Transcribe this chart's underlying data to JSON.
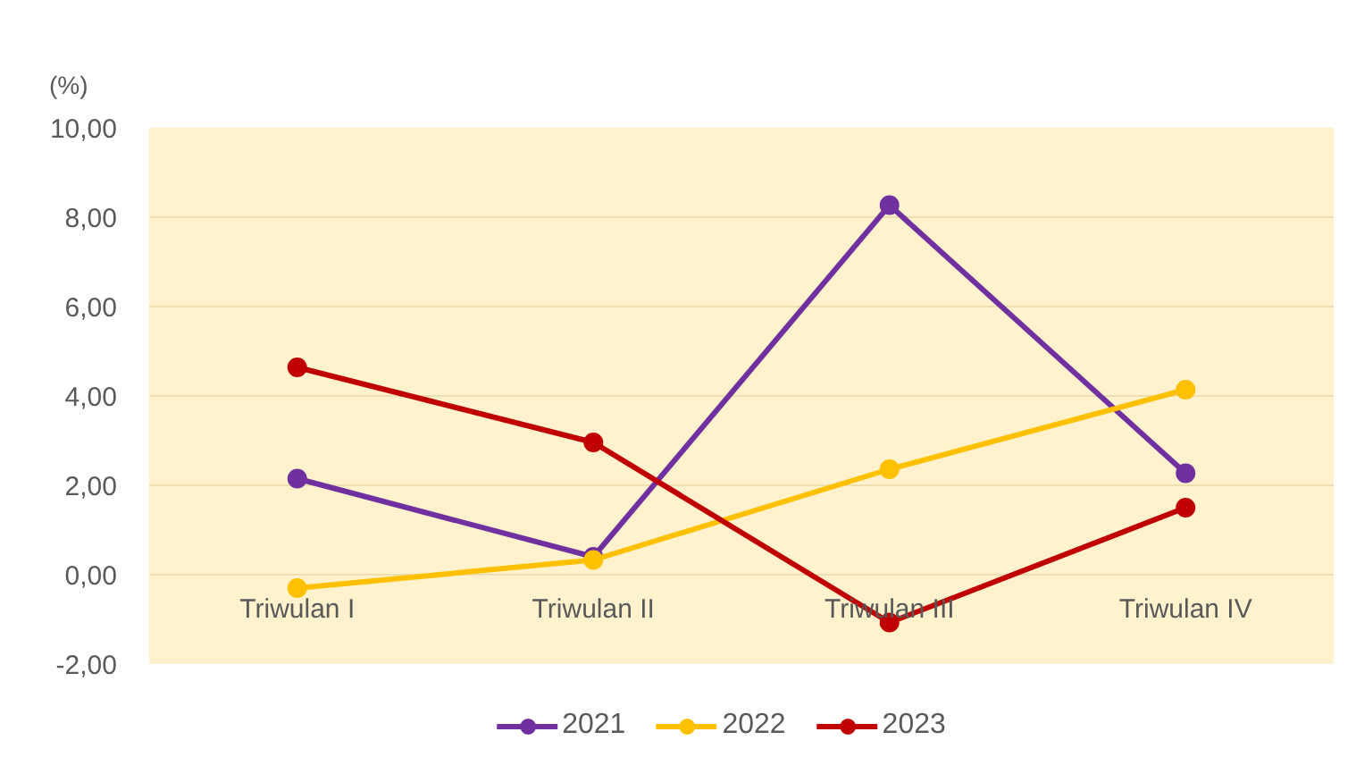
{
  "chart_data": {
    "type": "line",
    "ylabel": "(%)",
    "categories": [
      "Triwulan I",
      "Triwulan II",
      "Triwulan III",
      "Triwulan IV"
    ],
    "series": [
      {
        "name": "2021",
        "color": "#7030a0",
        "values": [
          2.15,
          0.4,
          8.27,
          2.27
        ]
      },
      {
        "name": "2022",
        "color": "#ffc000",
        "values": [
          -0.3,
          0.33,
          2.36,
          4.14
        ]
      },
      {
        "name": "2023",
        "color": "#c00000",
        "values": [
          4.64,
          2.96,
          -1.07,
          1.5
        ]
      }
    ],
    "ylim": [
      -2,
      10
    ],
    "yticks": [
      {
        "value": -2,
        "label": "-2,00"
      },
      {
        "value": 0,
        "label": "0,00"
      },
      {
        "value": 2,
        "label": "2,00"
      },
      {
        "value": 4,
        "label": "4,00"
      },
      {
        "value": 6,
        "label": "6,00"
      },
      {
        "value": 8,
        "label": "8,00"
      },
      {
        "value": 10,
        "label": "10,00"
      }
    ],
    "grid": "y",
    "legend": "bottom",
    "marker": "circle",
    "line_style": "solid"
  }
}
